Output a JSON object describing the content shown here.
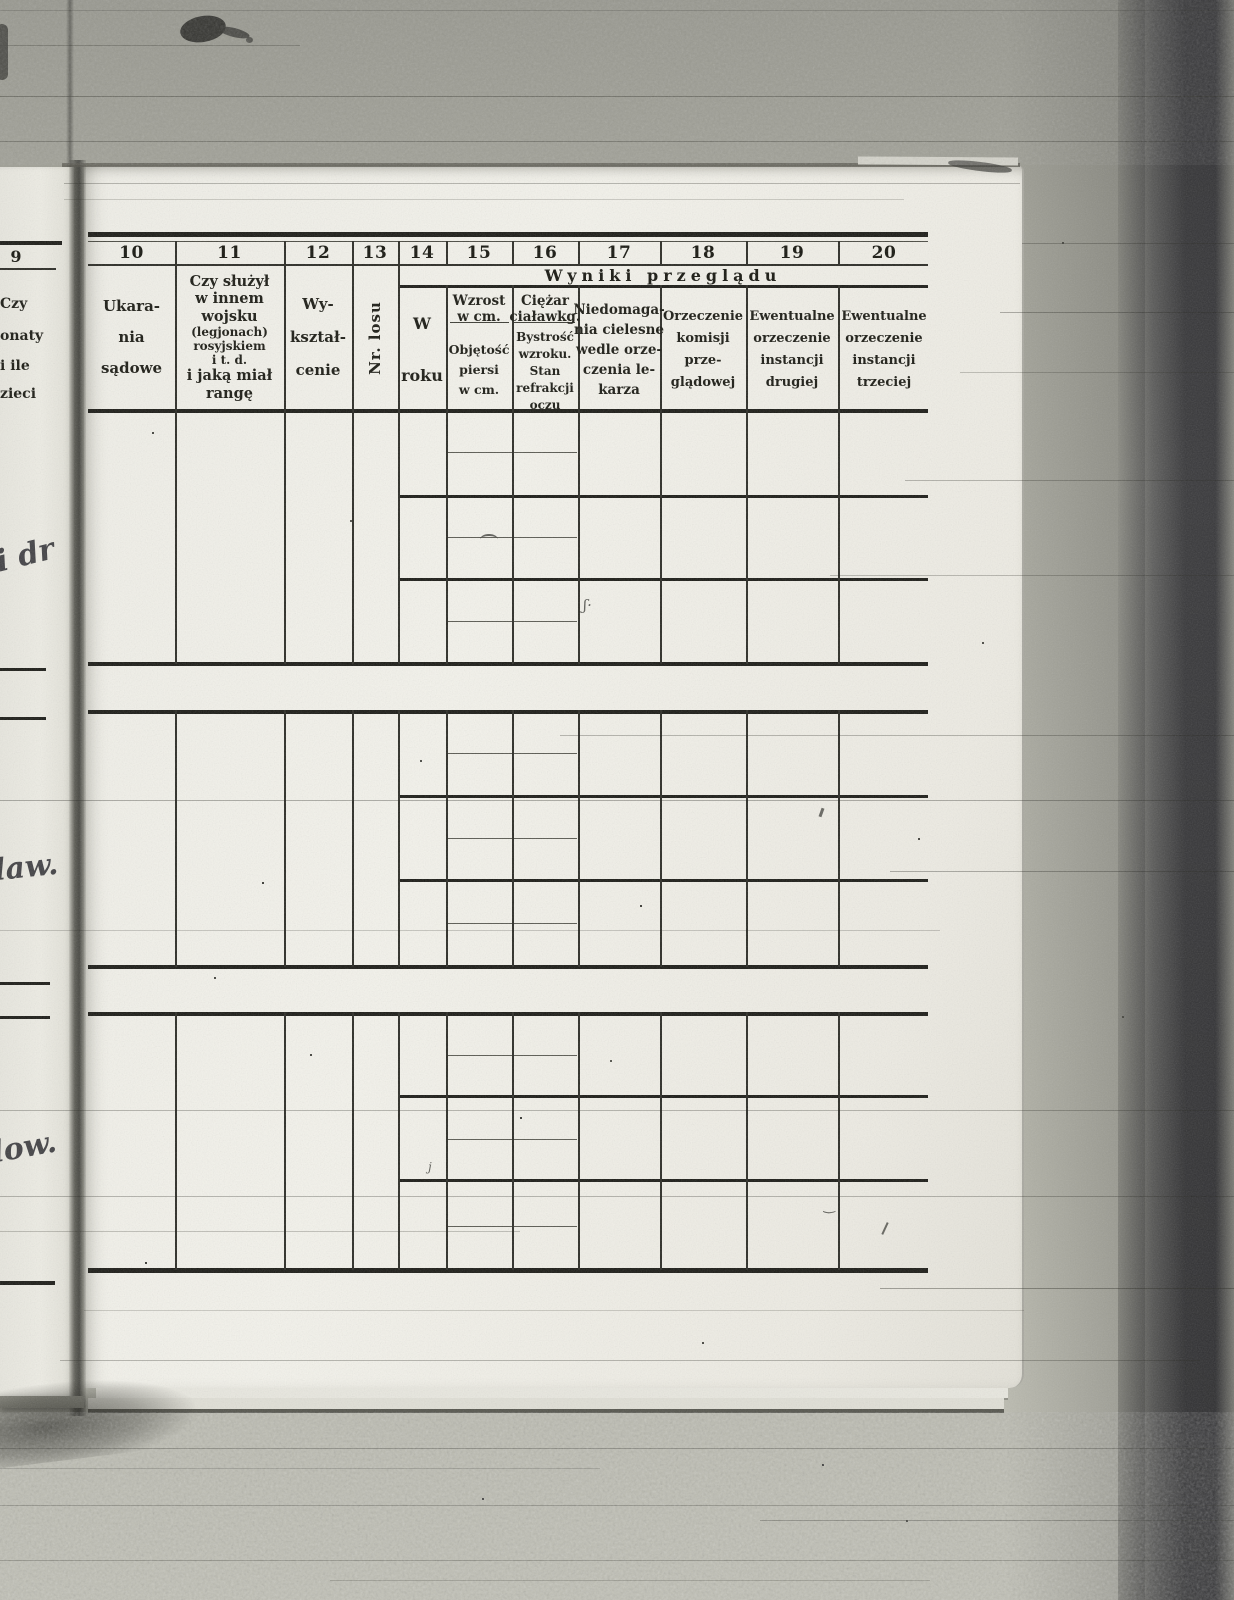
{
  "left_page": {
    "column_number": "9",
    "header_fragments": [
      "Czy",
      "onaty",
      "i ile",
      "zieci"
    ],
    "handwriting": [
      "i dr",
      "law.",
      "low."
    ]
  },
  "table": {
    "results_header": "Wyniki przeglądu",
    "columns": [
      {
        "num": "10",
        "lines": [
          "Ukara-",
          "nia",
          "sądowe"
        ]
      },
      {
        "num": "11",
        "lines_top": [
          "Czy służył",
          "w innem",
          "wojsku"
        ],
        "lines_small": [
          "(legjonach)",
          "rosyjskiem",
          "i t. d."
        ],
        "lines_bottom": [
          "i jaką miał",
          "rangę"
        ]
      },
      {
        "num": "12",
        "lines": [
          "Wy-",
          "kształ-",
          "cenie"
        ]
      },
      {
        "num": "13",
        "rotated_label": "Nr. losu"
      },
      {
        "num": "14",
        "lines": [
          "W",
          "roku"
        ]
      },
      {
        "num": "15",
        "lines_top": [
          "Wzrost",
          "w cm."
        ],
        "lines_bottom": [
          "Objętość",
          "piersi",
          "w cm."
        ]
      },
      {
        "num": "16",
        "lines_top": [
          "Ciężar",
          "ciaławkg."
        ],
        "lines_bottom": [
          "Bystrość",
          "wzroku.",
          "Stan",
          "refrakcji",
          "oczu"
        ]
      },
      {
        "num": "17",
        "lines": [
          "Niedomaga-",
          "nia cielesne",
          "wedle orze-",
          "czenia le-",
          "karza"
        ]
      },
      {
        "num": "18",
        "lines": [
          "Orzeczenie",
          "komisji",
          "prze-",
          "glądowej"
        ]
      },
      {
        "num": "19",
        "lines": [
          "Ewentualne",
          "orzeczenie",
          "instancji",
          "drugiej"
        ]
      },
      {
        "num": "20",
        "lines": [
          "Ewentualne",
          "orzeczenie",
          "instancji",
          "trzeciej"
        ]
      }
    ]
  }
}
